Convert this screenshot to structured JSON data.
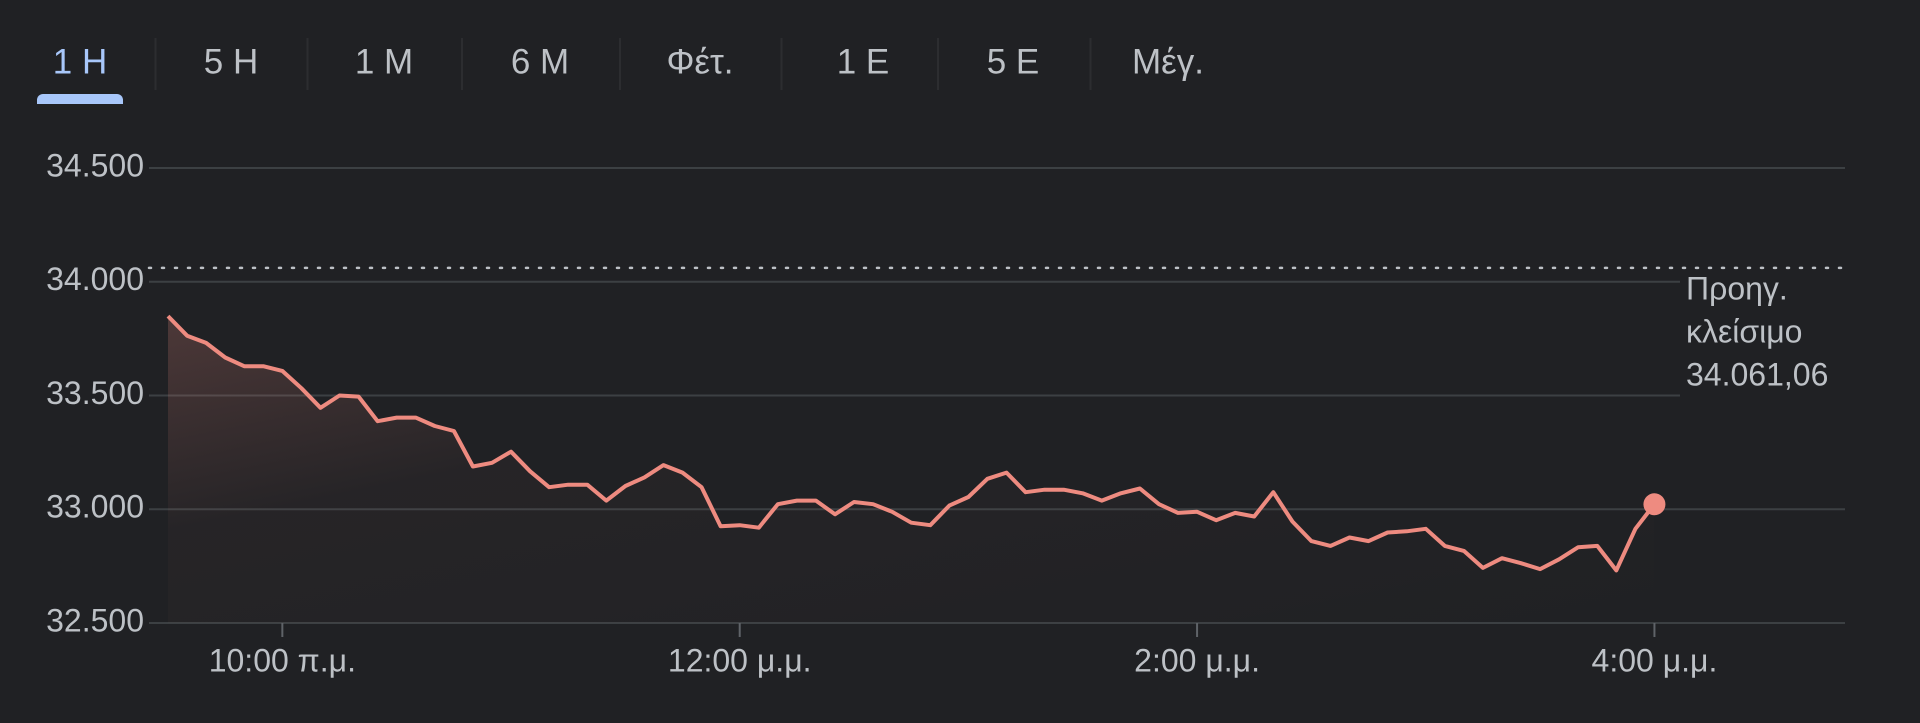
{
  "tabs": {
    "items": [
      "1 Η",
      "5 Η",
      "1 Μ",
      "6 Μ",
      "Φέτ.",
      "1 Ε",
      "5 Ε",
      "Μέγ."
    ],
    "active": 0
  },
  "chart_data": {
    "type": "line",
    "x": [
      "9:30",
      "9:35",
      "9:40",
      "9:45",
      "9:50",
      "9:55",
      "10:00",
      "10:05",
      "10:10",
      "10:15",
      "10:20",
      "10:25",
      "10:30",
      "10:35",
      "10:40",
      "10:45",
      "10:50",
      "10:55",
      "11:00",
      "11:05",
      "11:10",
      "11:15",
      "11:20",
      "11:25",
      "11:30",
      "11:35",
      "11:40",
      "11:45",
      "11:50",
      "11:55",
      "12:00",
      "12:05",
      "12:10",
      "12:15",
      "12:20",
      "12:25",
      "12:30",
      "12:35",
      "12:40",
      "12:45",
      "12:50",
      "12:55",
      "13:00",
      "13:05",
      "13:10",
      "13:15",
      "13:20",
      "13:25",
      "13:30",
      "13:35",
      "13:40",
      "13:45",
      "13:50",
      "13:55",
      "14:00",
      "14:05",
      "14:10",
      "14:15",
      "14:20",
      "14:25",
      "14:30",
      "14:35",
      "14:40",
      "14:45",
      "14:50",
      "14:55",
      "15:00",
      "15:05",
      "15:10",
      "15:15",
      "15:20",
      "15:25",
      "15:30",
      "15:35",
      "15:40",
      "15:45",
      "15:50",
      "15:55",
      "16:00"
    ],
    "series": [
      {
        "color": "#ee8b80",
        "values": [
          33849,
          33763,
          33731,
          33667,
          33629,
          33629,
          33608,
          33532,
          33446,
          33500,
          33495,
          33387,
          33403,
          33403,
          33366,
          33344,
          33188,
          33204,
          33253,
          33167,
          33097,
          33108,
          33108,
          33038,
          33102,
          33140,
          33194,
          33161,
          33097,
          32925,
          32930,
          32919,
          33022,
          33038,
          33038,
          32978,
          33032,
          33022,
          32989,
          32941,
          32930,
          33016,
          33054,
          33134,
          33161,
          33075,
          33086,
          33086,
          33070,
          33038,
          33070,
          33091,
          33022,
          32984,
          32989,
          32952,
          32984,
          32968,
          33075,
          32946,
          32860,
          32839,
          32876,
          32860,
          32898,
          32903,
          32914,
          32839,
          32817,
          32742,
          32785,
          32763,
          32737,
          32780,
          32833,
          32839,
          32731,
          32914,
          33022
        ]
      }
    ],
    "xlim": [
      "9:30",
      "16:50"
    ],
    "xticks": [
      {
        "value": "10:00",
        "label": "10:00 π.μ."
      },
      {
        "value": "12:00",
        "label": "12:00 μ.μ."
      },
      {
        "value": "14:00",
        "label": "2:00 μ.μ."
      },
      {
        "value": "16:00",
        "label": "4:00 μ.μ."
      }
    ],
    "ylim": [
      32500,
      34500
    ],
    "yticks": [
      {
        "value": 32500,
        "label": "32.500"
      },
      {
        "value": 33000,
        "label": "33.000"
      },
      {
        "value": 33500,
        "label": "33.500"
      },
      {
        "value": 34000,
        "label": "34.000"
      },
      {
        "value": 34500,
        "label": "34.500"
      }
    ],
    "grid": true,
    "previous_close": {
      "title": [
        "Προηγ.",
        "κλείσιμο"
      ],
      "value": 34061.06,
      "label": "34.061,06"
    }
  }
}
